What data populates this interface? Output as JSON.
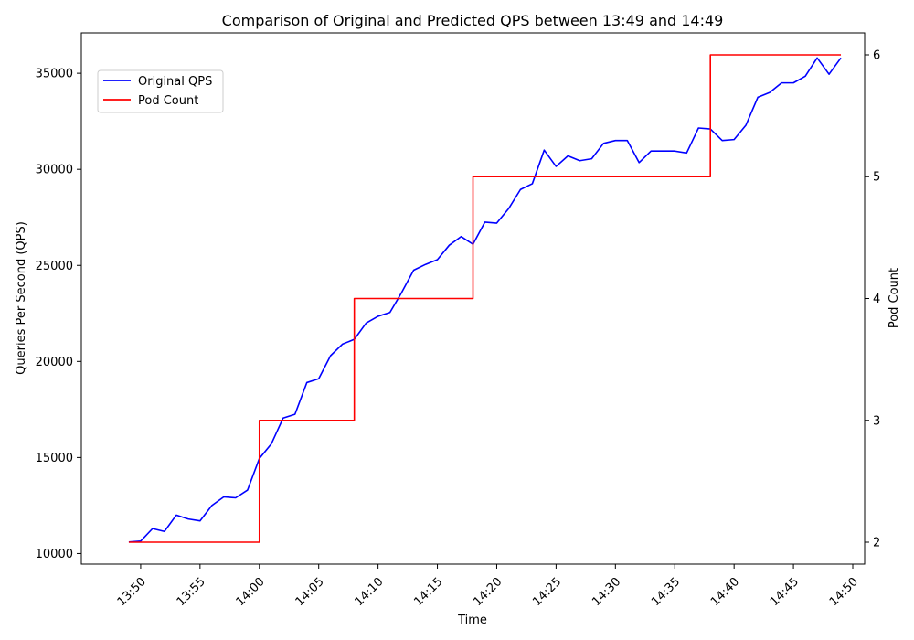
{
  "chart_data": {
    "type": "line",
    "title": "Comparison of Original and Predicted QPS between 13:49 and 14:49",
    "xlabel": "Time",
    "ylabel_left": "Queries Per Second (QPS)",
    "ylabel_right": "Pod Count",
    "x_ticks": [
      "13:50",
      "13:55",
      "14:00",
      "14:05",
      "14:10",
      "14:15",
      "14:20",
      "14:25",
      "14:30",
      "14:35",
      "14:40",
      "14:45",
      "14:50"
    ],
    "y_ticks_left": [
      10000,
      15000,
      20000,
      25000,
      30000,
      35000
    ],
    "y_ticks_right": [
      2,
      3,
      4,
      5,
      6
    ],
    "ylim_left": [
      9450,
      37100
    ],
    "ylim_right": [
      1.82,
      6.18
    ],
    "xlim_minutes": [
      -4.0,
      62.0
    ],
    "x_start": "13:49",
    "legend": {
      "placement": "upper-left",
      "entries": [
        "Original QPS",
        "Pod Count"
      ]
    },
    "grid": false,
    "series": [
      {
        "name": "Original QPS",
        "axis": "left",
        "color": "#0000ff",
        "x": [
          "13:49",
          "13:50",
          "13:51",
          "13:52",
          "13:53",
          "13:54",
          "13:55",
          "13:56",
          "13:57",
          "13:58",
          "13:59",
          "14:00",
          "14:01",
          "14:02",
          "14:03",
          "14:04",
          "14:05",
          "14:06",
          "14:07",
          "14:08",
          "14:09",
          "14:10",
          "14:11",
          "14:12",
          "14:13",
          "14:14",
          "14:15",
          "14:16",
          "14:17",
          "14:18",
          "14:19",
          "14:20",
          "14:21",
          "14:22",
          "14:23",
          "14:24",
          "14:25",
          "14:26",
          "14:27",
          "14:28",
          "14:29",
          "14:30",
          "14:31",
          "14:32",
          "14:33",
          "14:34",
          "14:35",
          "14:36",
          "14:37",
          "14:38",
          "14:39",
          "14:40",
          "14:41",
          "14:42",
          "14:43",
          "14:44",
          "14:45",
          "14:46",
          "14:47",
          "14:48",
          "14:49"
        ],
        "values": [
          10600,
          10650,
          11300,
          11150,
          12000,
          11800,
          11700,
          12500,
          12950,
          12900,
          13300,
          14950,
          15700,
          17050,
          17250,
          18900,
          19100,
          20300,
          20900,
          21150,
          22000,
          22350,
          22550,
          23600,
          24750,
          25050,
          25300,
          26050,
          26500,
          26100,
          27250,
          27200,
          27950,
          28950,
          29250,
          31000,
          30150,
          30700,
          30450,
          30550,
          31350,
          31500,
          31500,
          30350,
          30950,
          30950,
          30950,
          30850,
          32150,
          32100,
          31500,
          31550,
          32300,
          33750,
          34000,
          34500,
          34500,
          34850,
          35800,
          34950,
          35800
        ]
      },
      {
        "name": "Pod Count",
        "axis": "right",
        "color": "#ff0000",
        "step": "post",
        "x": [
          "13:49",
          "14:00",
          "14:08",
          "14:18",
          "14:38",
          "14:49"
        ],
        "values": [
          2,
          3,
          4,
          5,
          6,
          6
        ]
      }
    ]
  }
}
